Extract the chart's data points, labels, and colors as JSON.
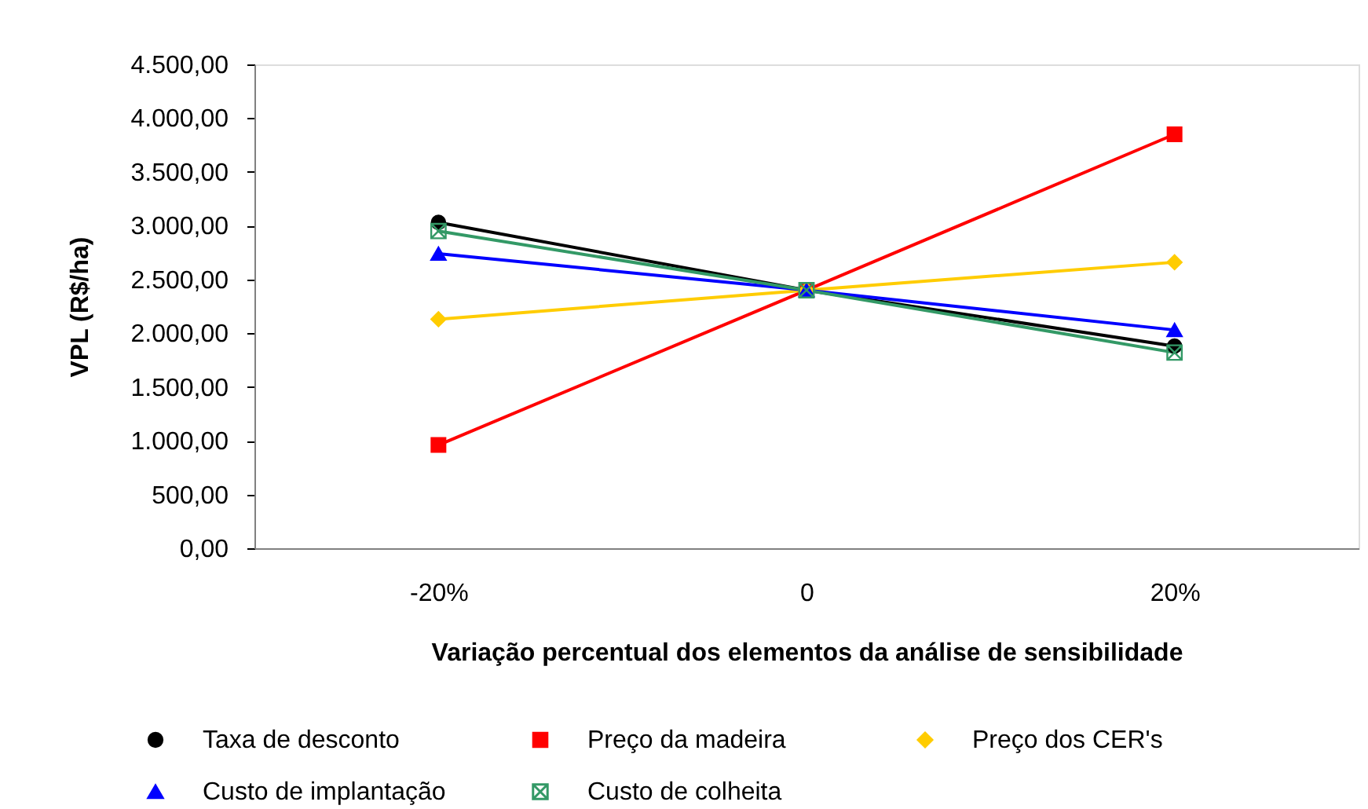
{
  "chart_data": {
    "type": "line",
    "xlabel": "Variação percentual dos elementos da análise de sensibilidade",
    "ylabel": "VPL (R$/ha)",
    "categories": [
      "-20%",
      "0",
      "20%"
    ],
    "series": [
      {
        "name": "Taxa de desconto",
        "color": "#000000",
        "marker": "circle",
        "values": [
          3030,
          2400,
          1880
        ]
      },
      {
        "name": "Preço da madeira",
        "color": "#ff0000",
        "marker": "square",
        "values": [
          960,
          2400,
          3850
        ]
      },
      {
        "name": "Preço dos CER's",
        "color": "#ffcc00",
        "marker": "diamond",
        "values": [
          2130,
          2400,
          2660
        ]
      },
      {
        "name": "Custo de implantação",
        "color": "#0000ff",
        "marker": "triangle",
        "values": [
          2740,
          2400,
          2030
        ]
      },
      {
        "name": "Custo de colheita",
        "color": "#339966",
        "marker": "cross",
        "values": [
          2950,
          2400,
          1820
        ]
      }
    ],
    "ylim": [
      0,
      4500
    ],
    "yticks": [
      {
        "value": 0,
        "label": "0,00"
      },
      {
        "value": 500,
        "label": "500,00"
      },
      {
        "value": 1000,
        "label": "1.000,00"
      },
      {
        "value": 1500,
        "label": "1.500,00"
      },
      {
        "value": 2000,
        "label": "2.000,00"
      },
      {
        "value": 2500,
        "label": "2.500,00"
      },
      {
        "value": 3000,
        "label": "3.000,00"
      },
      {
        "value": 3500,
        "label": "3.500,00"
      },
      {
        "value": 4000,
        "label": "4.000,00"
      },
      {
        "value": 4500,
        "label": "4.500,00"
      }
    ],
    "legend": "bottom",
    "line_style": "solid"
  }
}
